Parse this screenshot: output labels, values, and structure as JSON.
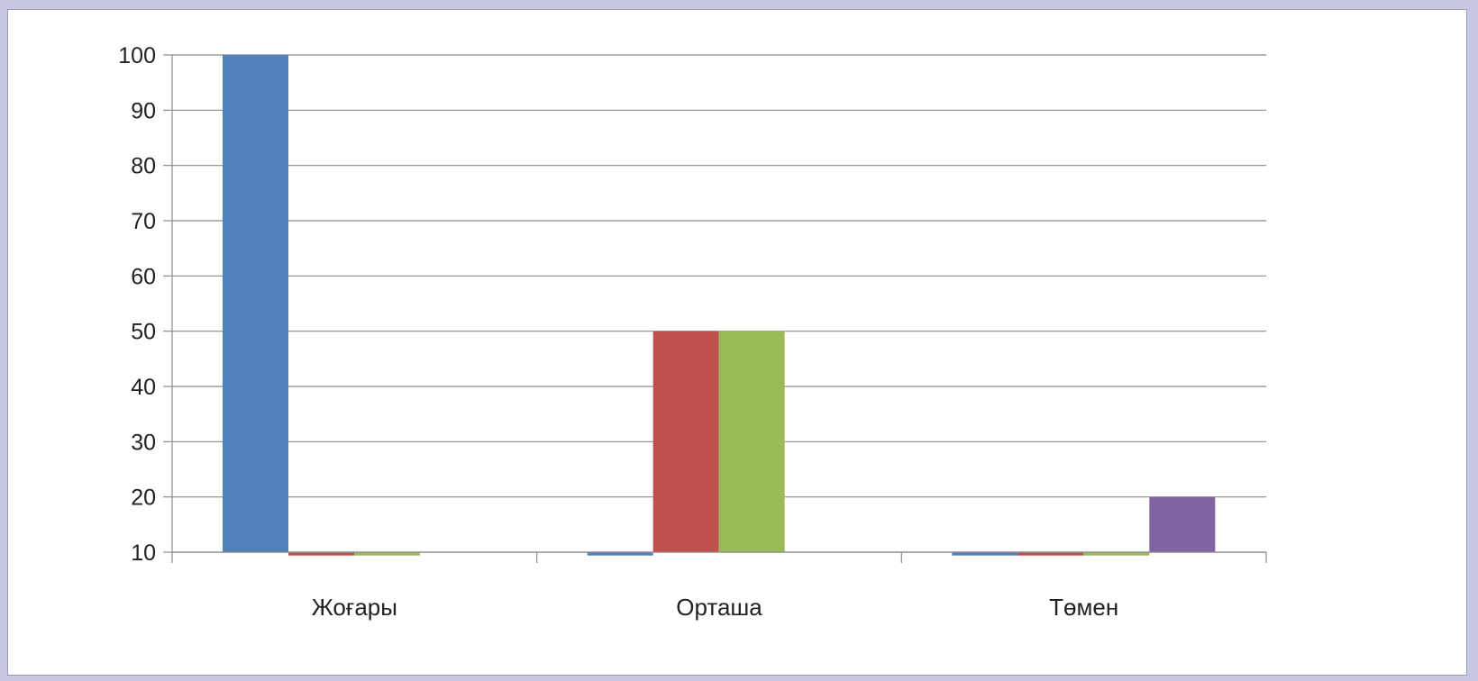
{
  "chart_data": {
    "type": "bar",
    "categories": [
      "Жоғары",
      "Орташа",
      "Төмен"
    ],
    "series": [
      {
        "values": [
          100,
          9.4,
          9.4
        ],
        "color": "#4f81bd"
      },
      {
        "values": [
          9.4,
          50,
          9.4
        ],
        "color": "#c0504d"
      },
      {
        "values": [
          9.4,
          50,
          9.4
        ],
        "color": "#9bbb59"
      },
      {
        "values": [
          null,
          null,
          20
        ],
        "color": "#8064a2"
      }
    ],
    "yticks": [
      10,
      20,
      30,
      40,
      50,
      60,
      70,
      80,
      90,
      100
    ],
    "ylim": [
      10,
      100
    ],
    "grid": true,
    "legend": "none"
  }
}
